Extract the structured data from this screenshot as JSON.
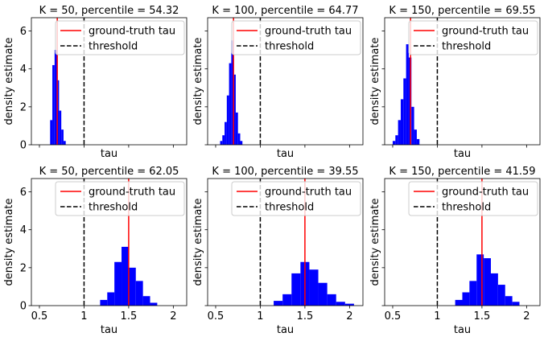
{
  "figure": {
    "xlabel": "tau",
    "ylabel": "density estimate",
    "legend_items": [
      "ground-truth tau",
      "threshold"
    ],
    "legend_placement": "top-right",
    "sharex": true,
    "sharey": true,
    "xlim": [
      0.41,
      2.15
    ],
    "ylim": [
      0,
      6.7
    ],
    "xticks": [
      0.5,
      1.0,
      1.5,
      2.0
    ],
    "yticks": [
      0,
      2,
      4,
      6
    ],
    "colors": {
      "bars": "#0000ff",
      "truth": "#ff0000",
      "threshold": "#000000"
    }
  },
  "chart_data": [
    {
      "type": "histogram",
      "title": "K = 50, percentile = 54.32",
      "ground_truth": 0.7,
      "threshold": 1.0,
      "bins": [
        {
          "x0": 0.62,
          "x1": 0.645,
          "h": 1.3
        },
        {
          "x0": 0.645,
          "x1": 0.67,
          "h": 4.2
        },
        {
          "x0": 0.67,
          "x1": 0.695,
          "h": 5.0
        },
        {
          "x0": 0.695,
          "x1": 0.72,
          "h": 3.4
        },
        {
          "x0": 0.72,
          "x1": 0.745,
          "h": 1.8
        },
        {
          "x0": 0.745,
          "x1": 0.77,
          "h": 0.8
        },
        {
          "x0": 0.77,
          "x1": 0.795,
          "h": 0.2
        }
      ]
    },
    {
      "type": "histogram",
      "title": "K = 100, percentile = 64.77",
      "ground_truth": 0.7,
      "threshold": 1.0,
      "bins": [
        {
          "x0": 0.55,
          "x1": 0.575,
          "h": 0.2
        },
        {
          "x0": 0.575,
          "x1": 0.6,
          "h": 0.5
        },
        {
          "x0": 0.6,
          "x1": 0.625,
          "h": 1.2
        },
        {
          "x0": 0.625,
          "x1": 0.65,
          "h": 2.6
        },
        {
          "x0": 0.65,
          "x1": 0.675,
          "h": 4.3
        },
        {
          "x0": 0.675,
          "x1": 0.7,
          "h": 5.5
        },
        {
          "x0": 0.7,
          "x1": 0.725,
          "h": 3.7
        },
        {
          "x0": 0.725,
          "x1": 0.75,
          "h": 1.7
        },
        {
          "x0": 0.75,
          "x1": 0.775,
          "h": 0.6
        },
        {
          "x0": 0.775,
          "x1": 0.8,
          "h": 0.2
        }
      ]
    },
    {
      "type": "histogram",
      "title": "K = 150, percentile = 69.55",
      "ground_truth": 0.7,
      "threshold": 1.0,
      "bins": [
        {
          "x0": 0.5,
          "x1": 0.53,
          "h": 0.2
        },
        {
          "x0": 0.53,
          "x1": 0.56,
          "h": 0.5
        },
        {
          "x0": 0.56,
          "x1": 0.59,
          "h": 1.3
        },
        {
          "x0": 0.59,
          "x1": 0.62,
          "h": 2.4
        },
        {
          "x0": 0.62,
          "x1": 0.65,
          "h": 3.5
        },
        {
          "x0": 0.65,
          "x1": 0.68,
          "h": 5.3
        },
        {
          "x0": 0.68,
          "x1": 0.71,
          "h": 4.6
        },
        {
          "x0": 0.71,
          "x1": 0.74,
          "h": 2.0
        },
        {
          "x0": 0.74,
          "x1": 0.77,
          "h": 0.8
        },
        {
          "x0": 0.77,
          "x1": 0.8,
          "h": 0.3
        }
      ]
    },
    {
      "type": "histogram",
      "title": "K = 50, percentile = 62.05",
      "ground_truth": 1.5,
      "threshold": 1.0,
      "bins": [
        {
          "x0": 1.18,
          "x1": 1.26,
          "h": 0.3
        },
        {
          "x0": 1.26,
          "x1": 1.34,
          "h": 0.7
        },
        {
          "x0": 1.34,
          "x1": 1.42,
          "h": 2.3
        },
        {
          "x0": 1.42,
          "x1": 1.5,
          "h": 3.1
        },
        {
          "x0": 1.5,
          "x1": 1.58,
          "h": 2.0
        },
        {
          "x0": 1.58,
          "x1": 1.66,
          "h": 1.3
        },
        {
          "x0": 1.66,
          "x1": 1.74,
          "h": 0.5
        },
        {
          "x0": 1.74,
          "x1": 1.82,
          "h": 0.15
        }
      ]
    },
    {
      "type": "histogram",
      "title": "K = 100, percentile = 39.55",
      "ground_truth": 1.5,
      "threshold": 1.0,
      "bins": [
        {
          "x0": 1.15,
          "x1": 1.25,
          "h": 0.25
        },
        {
          "x0": 1.25,
          "x1": 1.35,
          "h": 0.6
        },
        {
          "x0": 1.35,
          "x1": 1.45,
          "h": 1.7
        },
        {
          "x0": 1.45,
          "x1": 1.55,
          "h": 2.3
        },
        {
          "x0": 1.55,
          "x1": 1.65,
          "h": 1.9
        },
        {
          "x0": 1.65,
          "x1": 1.75,
          "h": 1.2
        },
        {
          "x0": 1.75,
          "x1": 1.85,
          "h": 0.6
        },
        {
          "x0": 1.85,
          "x1": 1.95,
          "h": 0.2
        },
        {
          "x0": 1.95,
          "x1": 2.05,
          "h": 0.1
        }
      ]
    },
    {
      "type": "histogram",
      "title": "K = 150, percentile = 41.59",
      "ground_truth": 1.5,
      "threshold": 1.0,
      "bins": [
        {
          "x0": 1.2,
          "x1": 1.28,
          "h": 0.3
        },
        {
          "x0": 1.28,
          "x1": 1.36,
          "h": 0.7
        },
        {
          "x0": 1.36,
          "x1": 1.44,
          "h": 1.3
        },
        {
          "x0": 1.44,
          "x1": 1.52,
          "h": 2.7
        },
        {
          "x0": 1.52,
          "x1": 1.6,
          "h": 2.5
        },
        {
          "x0": 1.6,
          "x1": 1.68,
          "h": 1.7
        },
        {
          "x0": 1.68,
          "x1": 1.76,
          "h": 1.1
        },
        {
          "x0": 1.76,
          "x1": 1.84,
          "h": 0.5
        },
        {
          "x0": 1.84,
          "x1": 1.92,
          "h": 0.2
        }
      ]
    }
  ]
}
